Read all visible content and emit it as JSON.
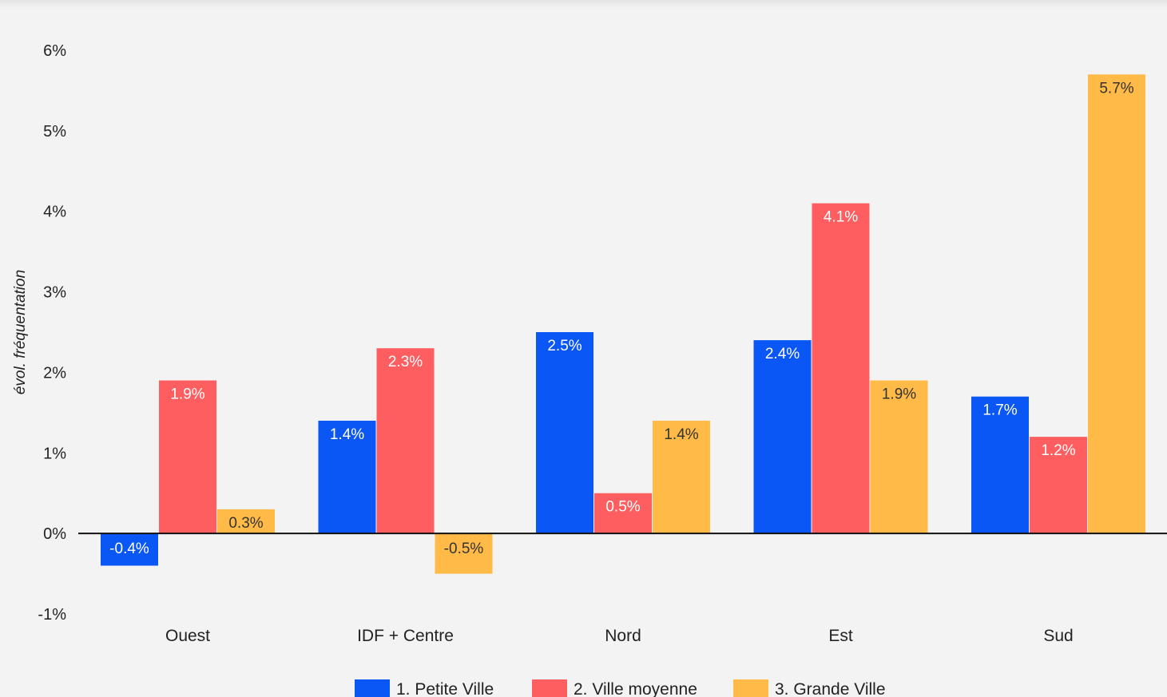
{
  "chart_data": {
    "type": "bar",
    "title": "",
    "xlabel": "",
    "ylabel": "évol. fréquentation",
    "categories": [
      "Ouest",
      "IDF + Centre",
      "Nord",
      "Est",
      "Sud"
    ],
    "series": [
      {
        "name": "1. Petite Ville",
        "color": "#0b57f5",
        "values": [
          -0.4,
          1.4,
          2.5,
          2.4,
          1.7
        ],
        "labels": [
          "-0.4%",
          "1.4%",
          "2.5%",
          "2.4%",
          "1.7%"
        ]
      },
      {
        "name": "2. Ville moyenne",
        "color": "#fe5e5f",
        "values": [
          1.9,
          2.3,
          0.5,
          4.1,
          1.2
        ],
        "labels": [
          "1.9%",
          "2.3%",
          "0.5%",
          "4.1%",
          "1.2%"
        ]
      },
      {
        "name": "3. Grande Ville",
        "color": "#ffba47",
        "values": [
          0.3,
          -0.5,
          1.4,
          1.9,
          5.7
        ],
        "labels": [
          "0.3%",
          "-0.5%",
          "1.4%",
          "1.9%",
          "5.7%"
        ]
      }
    ],
    "ylim": [
      -1,
      6
    ],
    "yticks": [
      6,
      5,
      4,
      3,
      2,
      1,
      0,
      -1
    ],
    "ytick_labels": [
      "6%",
      "5%",
      "4%",
      "3%",
      "2%",
      "1%",
      "0%",
      "-1%"
    ],
    "grid": false,
    "legend_position": "bottom-center",
    "background": "#f3f3f3"
  }
}
